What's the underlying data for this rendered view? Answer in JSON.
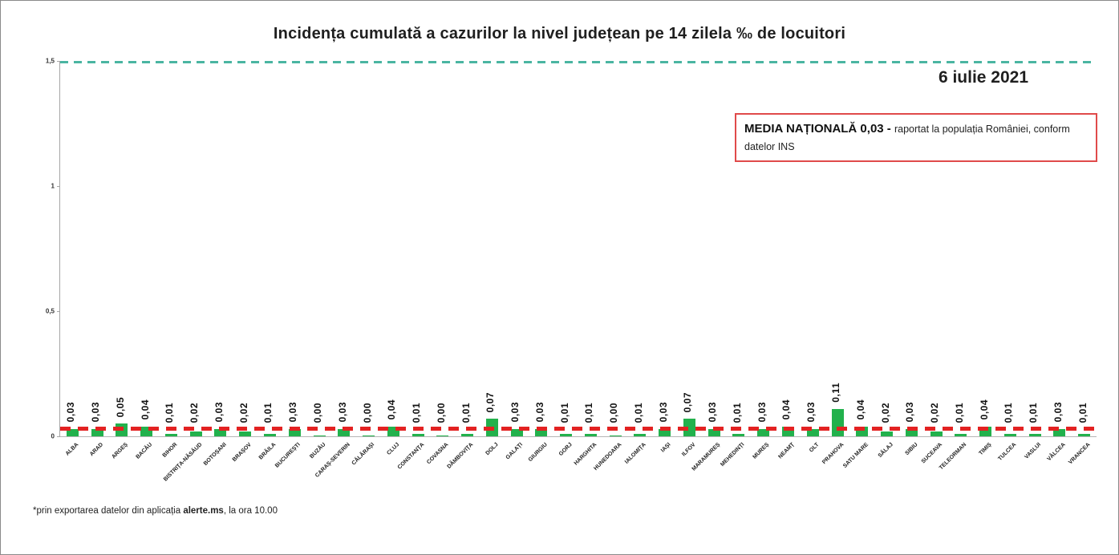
{
  "title": "Incidența cumulată a cazurilor la nivel județean pe 14 zilela ‰ de locuitori",
  "date_label": "6 iulie 2021",
  "annotation_box": {
    "bold_text": "MEDIA NAȚIONALĂ 0,03 - ",
    "normal_text": "raportat la populația României, conform datelor INS"
  },
  "footnote": {
    "prefix": "*prin exportarea datelor din aplicația ",
    "bold": "alerte.ms",
    "suffix": ", la ora 10.00"
  },
  "chart_data": {
    "type": "bar",
    "title": "Incidența cumulată a cazurilor la nivel județean pe 14 zilela ‰ de locuitori",
    "xlabel": "",
    "ylabel": "",
    "ylim": [
      0,
      1.5
    ],
    "grid": false,
    "bar_color": "#22b14c",
    "categories": [
      "ALBA",
      "ARAD",
      "ARGEȘ",
      "BACĂU",
      "BIHOR",
      "BISTRIȚA-NĂSĂUD",
      "BOTOȘANI",
      "BRAȘOV",
      "BRĂILA",
      "BUCUREȘTI",
      "BUZĂU",
      "CARAȘ-SEVERIN",
      "CĂLĂRAȘI",
      "CLUJ",
      "CONSTANȚA",
      "COVASNA",
      "DÂMBOVIȚA",
      "DOLJ",
      "GALAȚI",
      "GIURGIU",
      "GORJ",
      "HARGHITA",
      "HUNEDOARA",
      "IALOMIȚA",
      "IAȘI",
      "ILFOV",
      "MARAMUREȘ",
      "MEHEDINȚI",
      "MUREȘ",
      "NEAMȚ",
      "OLT",
      "PRAHOVA",
      "SATU MARE",
      "SĂLAJ",
      "SIBIU",
      "SUCEAVA",
      "TELEORMAN",
      "TIMIȘ",
      "TULCEA",
      "VASLUI",
      "VÂLCEA",
      "VRANCEA"
    ],
    "values": [
      0.03,
      0.03,
      0.05,
      0.04,
      0.01,
      0.02,
      0.03,
      0.02,
      0.01,
      0.03,
      0.0,
      0.03,
      0.0,
      0.04,
      0.01,
      0.0,
      0.01,
      0.07,
      0.03,
      0.03,
      0.01,
      0.01,
      0.0,
      0.01,
      0.03,
      0.07,
      0.03,
      0.01,
      0.03,
      0.04,
      0.03,
      0.11,
      0.04,
      0.02,
      0.03,
      0.02,
      0.01,
      0.04,
      0.01,
      0.01,
      0.03,
      0.01
    ],
    "value_labels": [
      "0,03",
      "0,03",
      "0,05",
      "0,04",
      "0,01",
      "0,02",
      "0,03",
      "0,02",
      "0,01",
      "0,03",
      "0,00",
      "0,03",
      "0,00",
      "0,04",
      "0,01",
      "0,00",
      "0,01",
      "0,07",
      "0,03",
      "0,03",
      "0,01",
      "0,01",
      "0,00",
      "0,01",
      "0,03",
      "0,07",
      "0,03",
      "0,01",
      "0,03",
      "0,04",
      "0,03",
      "0,11",
      "0,04",
      "0,02",
      "0,03",
      "0,02",
      "0,01",
      "0,04",
      "0,01",
      "0,01",
      "0,03",
      "0,01"
    ],
    "yticks": [
      {
        "value": 0,
        "label": "0"
      },
      {
        "value": 0.5,
        "label": "0,5"
      },
      {
        "value": 1,
        "label": "1"
      },
      {
        "value": 1.5,
        "label": "1,5"
      }
    ],
    "reference_lines": [
      {
        "name": "upper-limit",
        "value": 1.5,
        "color": "#4ab5a1",
        "style": "dashed"
      },
      {
        "name": "national-average",
        "value": 0.03,
        "color": "#e32222",
        "style": "dashed"
      }
    ]
  }
}
